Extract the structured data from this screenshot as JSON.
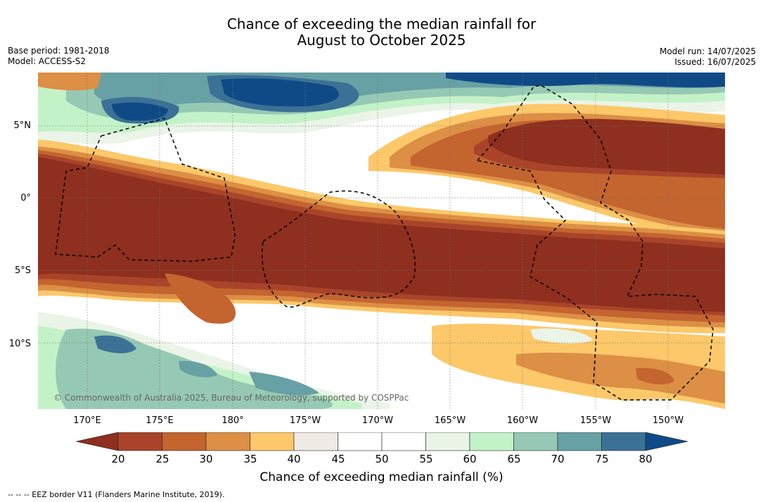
{
  "title": {
    "line1": "Chance of exceeding the median rainfall for",
    "line2": "August to October 2025"
  },
  "meta_left": {
    "base_period": "Base period: 1981-2018",
    "model": "Model: ACCESS-S2"
  },
  "meta_right": {
    "model_run": "Model run: 14/07/2025",
    "issued": "Issued: 16/07/2025"
  },
  "map": {
    "copyright": "© Commonwealth of Australia 2025, Bureau of Meteorology, supported by COSPPac",
    "lat_labels": [
      "5°N",
      "0°",
      "5°S",
      "10°S"
    ],
    "lon_labels": [
      "170°E",
      "175°E",
      "180°",
      "175°W",
      "170°W",
      "165°W",
      "160°W",
      "155°W",
      "150°W"
    ]
  },
  "colorbar": {
    "ticks": [
      "20",
      "25",
      "30",
      "35",
      "40",
      "45",
      "50",
      "55",
      "60",
      "65",
      "70",
      "75",
      "80"
    ],
    "colors": [
      "#8e2f1f",
      "#a9442a",
      "#c4642f",
      "#dc8f45",
      "#fcc86a",
      "#efebe4",
      "#ffffff",
      "#ffffff",
      "#eaf4e7",
      "#c4f2c8",
      "#96c9b3",
      "#67a0a5",
      "#3b7195",
      "#104a86"
    ],
    "title": "Chance of exceeding median rainfall (%)"
  },
  "footer": "--  --  -- EEZ border V11 (Flanders Marine Institute, 2019)."
}
